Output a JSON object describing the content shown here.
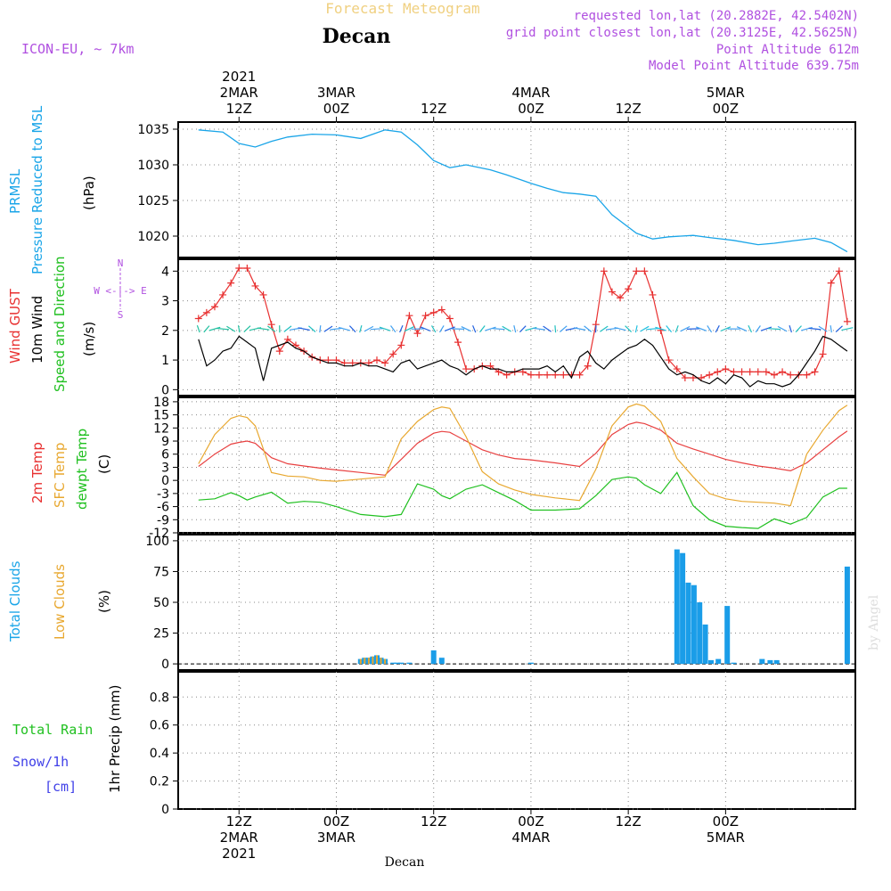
{
  "header": {
    "product": "Forecast Meteogram",
    "station": "Decan",
    "model": "ICON-EU, ~ 7km",
    "requested": "requested lon,lat (20.2882E, 42.5402N)",
    "gridpoint": "grid point closest lon,lat (20.3125E, 42.5625N)",
    "point_alt": "Point Altitude 612m",
    "model_alt": "Model Point Altitude 639.75m",
    "footer_station": "Decan",
    "credit": "by Angel"
  },
  "time_axis": {
    "ticks": [
      {
        "h": 12,
        "top": [
          "2021",
          "2MAR",
          "12Z"
        ],
        "bottom": [
          "12Z",
          "2MAR",
          "2021"
        ]
      },
      {
        "h": 24,
        "top": [
          "3MAR",
          "00Z"
        ],
        "bottom": [
          "00Z",
          "3MAR"
        ]
      },
      {
        "h": 36,
        "top": [
          "12Z"
        ],
        "bottom": [
          "12Z"
        ]
      },
      {
        "h": 48,
        "top": [
          "4MAR",
          "00Z"
        ],
        "bottom": [
          "00Z",
          "4MAR"
        ]
      },
      {
        "h": 60,
        "top": [
          "12Z"
        ],
        "bottom": [
          "12Z"
        ]
      },
      {
        "h": 72,
        "top": [
          "5MAR",
          "00Z"
        ],
        "bottom": [
          "00Z",
          "5MAR"
        ]
      }
    ]
  },
  "labels": {
    "p1": [
      "PRMSL",
      "Pressure Reduced to MSL",
      "(hPa)"
    ],
    "p2": [
      "Wind GUST",
      "10m Wind",
      "Speed and Direction",
      "(m/s)"
    ],
    "compass": [
      "N",
      "W <-|-> E",
      "S"
    ],
    "p3": [
      "2m Temp",
      "SFC Temp",
      "dewpt Temp",
      "(C)"
    ],
    "p4": [
      "Total Clouds",
      "Low Clouds",
      "(%)"
    ],
    "p5": [
      "Total  Rain",
      "Snow/1h",
      "[cm]",
      "1hr Precip (mm)"
    ]
  },
  "colors": {
    "pressure": "#1aa5e8",
    "gust": "#e83030",
    "wind": "#000000",
    "t2m": "#e84040",
    "sfc": "#e8a830",
    "dewpt": "#20c020",
    "clouds": "#1a9de8",
    "low_clouds": "#e8a830",
    "rain": "#20c020",
    "snow": "#4040e8",
    "meta": "#b050e0"
  },
  "chart_data": [
    {
      "type": "line",
      "title": "PRMSL Pressure Reduced to MSL",
      "ylabel": "(hPa)",
      "ylim": [
        1017,
        1036
      ],
      "yticks": [
        1020,
        1025,
        1030,
        1035
      ],
      "x_hours": [
        7,
        10,
        12,
        14,
        16,
        18,
        21,
        24,
        27,
        30,
        32,
        34,
        36,
        38,
        40,
        43,
        45,
        48,
        50,
        52,
        54,
        56,
        58,
        61,
        63,
        65,
        68,
        70,
        73,
        76,
        78,
        80,
        83,
        85,
        87
      ],
      "series": [
        {
          "name": "PRMSL",
          "values": [
            1034.9,
            1034.6,
            1033.0,
            1032.5,
            1033.3,
            1033.9,
            1034.3,
            1034.2,
            1033.7,
            1034.9,
            1034.6,
            1032.8,
            1030.6,
            1029.6,
            1030.0,
            1029.3,
            1028.6,
            1027.4,
            1026.7,
            1026.1,
            1025.9,
            1025.6,
            1023.0,
            1020.4,
            1019.6,
            1019.9,
            1020.1,
            1019.8,
            1019.4,
            1018.8,
            1019.0,
            1019.3,
            1019.7,
            1019.1,
            1017.8
          ]
        }
      ]
    },
    {
      "type": "line",
      "title": "Wind GUST / 10m Wind Speed and Direction",
      "ylabel": "(m/s)",
      "ylim": [
        -0.2,
        4.4
      ],
      "yticks": [
        0,
        1,
        2,
        3,
        4
      ],
      "x_hours": [
        7,
        8,
        9,
        10,
        11,
        12,
        13,
        14,
        15,
        16,
        17,
        18,
        19,
        20,
        21,
        22,
        23,
        24,
        25,
        26,
        27,
        28,
        29,
        30,
        31,
        32,
        33,
        34,
        35,
        36,
        37,
        38,
        39,
        40,
        41,
        42,
        43,
        44,
        45,
        46,
        47,
        48,
        49,
        50,
        51,
        52,
        53,
        54,
        55,
        56,
        57,
        58,
        59,
        60,
        61,
        62,
        63,
        64,
        65,
        66,
        67,
        68,
        69,
        70,
        71,
        72,
        73,
        74,
        75,
        76,
        77,
        78,
        79,
        80,
        81,
        82,
        83,
        84,
        85,
        86,
        87
      ],
      "series": [
        {
          "name": "Wind GUST",
          "values": [
            2.4,
            2.6,
            2.8,
            3.2,
            3.6,
            4.1,
            4.1,
            3.5,
            3.2,
            2.2,
            1.3,
            1.7,
            1.5,
            1.3,
            1.1,
            1.0,
            1.0,
            1.0,
            0.9,
            0.9,
            0.9,
            0.9,
            1.0,
            0.9,
            1.2,
            1.5,
            2.5,
            1.9,
            2.5,
            2.6,
            2.7,
            2.4,
            1.6,
            0.7,
            0.7,
            0.8,
            0.8,
            0.6,
            0.5,
            0.6,
            0.6,
            0.5,
            0.5,
            0.5,
            0.5,
            0.5,
            0.5,
            0.5,
            0.8,
            2.2,
            4.0,
            3.3,
            3.1,
            3.4,
            4.0,
            4.0,
            3.2,
            2.0,
            1.0,
            0.7,
            0.4,
            0.4,
            0.4,
            0.5,
            0.6,
            0.7,
            0.6,
            0.6,
            0.6,
            0.6,
            0.6,
            0.5,
            0.6,
            0.5,
            0.5,
            0.5,
            0.6,
            1.2,
            3.6,
            4.0,
            2.3
          ]
        },
        {
          "name": "10m Wind",
          "values": [
            1.7,
            0.8,
            1.0,
            1.3,
            1.4,
            1.8,
            1.6,
            1.4,
            0.3,
            1.4,
            1.5,
            1.6,
            1.4,
            1.3,
            1.1,
            1.0,
            0.9,
            0.9,
            0.8,
            0.8,
            0.9,
            0.8,
            0.8,
            0.7,
            0.6,
            0.9,
            1.0,
            0.7,
            0.8,
            0.9,
            1.0,
            0.8,
            0.7,
            0.5,
            0.7,
            0.8,
            0.7,
            0.7,
            0.6,
            0.6,
            0.7,
            0.7,
            0.7,
            0.8,
            0.6,
            0.8,
            0.4,
            1.1,
            1.3,
            0.9,
            0.7,
            1.0,
            1.2,
            1.4,
            1.5,
            1.7,
            1.5,
            1.1,
            0.7,
            0.5,
            0.6,
            0.5,
            0.3,
            0.2,
            0.4,
            0.2,
            0.5,
            0.4,
            0.1,
            0.3,
            0.2,
            0.2,
            0.1,
            0.2,
            0.5,
            0.9,
            1.3,
            1.8,
            1.7,
            1.5,
            1.3
          ]
        }
      ]
    },
    {
      "type": "line",
      "title": "2m Temp / SFC Temp / dewpt Temp",
      "ylabel": "(C)",
      "ylim": [
        -12,
        19
      ],
      "yticks": [
        -12,
        -9,
        -6,
        -3,
        0,
        3,
        6,
        9,
        12,
        15,
        18
      ],
      "x_hours": [
        7,
        9,
        11,
        12,
        13,
        14,
        16,
        18,
        20,
        22,
        24,
        27,
        30,
        32,
        34,
        36,
        37,
        38,
        40,
        42,
        44,
        46,
        48,
        51,
        54,
        56,
        58,
        60,
        61,
        62,
        64,
        66,
        68,
        70,
        72,
        74,
        76,
        78,
        80,
        82,
        84,
        86,
        87
      ],
      "series": [
        {
          "name": "2m Temp",
          "values": [
            3.2,
            6.0,
            8.3,
            8.7,
            9.0,
            8.5,
            5.2,
            3.8,
            3.3,
            2.8,
            2.4,
            1.8,
            1.2,
            4.8,
            8.5,
            10.8,
            11.2,
            11.0,
            9.0,
            7.0,
            5.8,
            5.0,
            4.7,
            4.0,
            3.2,
            6.2,
            10.5,
            12.8,
            13.3,
            13.0,
            11.5,
            8.5,
            7.2,
            6.0,
            4.8,
            4.0,
            3.3,
            2.8,
            2.2,
            4.0,
            7.0,
            10.0,
            11.3
          ]
        },
        {
          "name": "SFC Temp",
          "values": [
            3.8,
            10.5,
            14.2,
            14.8,
            14.4,
            12.5,
            1.8,
            1.0,
            0.8,
            0.0,
            -0.2,
            0.3,
            0.8,
            9.5,
            13.5,
            16.2,
            16.8,
            16.5,
            10.0,
            2.0,
            -0.8,
            -2.2,
            -3.2,
            -4.0,
            -4.6,
            2.5,
            12.5,
            16.8,
            17.5,
            17.0,
            13.5,
            5.0,
            0.8,
            -3.0,
            -4.2,
            -4.8,
            -5.0,
            -5.2,
            -5.8,
            6.0,
            11.5,
            16.0,
            17.2
          ]
        },
        {
          "name": "dewpt Temp",
          "values": [
            -4.5,
            -4.2,
            -2.8,
            -3.5,
            -4.5,
            -3.8,
            -2.7,
            -5.2,
            -4.8,
            -5.0,
            -6.0,
            -7.8,
            -8.3,
            -7.8,
            -0.8,
            -2.0,
            -3.5,
            -4.2,
            -2.0,
            -1.0,
            -2.8,
            -4.6,
            -6.8,
            -6.8,
            -6.5,
            -3.5,
            0.2,
            0.8,
            0.5,
            -1.0,
            -3.0,
            1.8,
            -5.8,
            -9.0,
            -10.5,
            -10.8,
            -11.0,
            -8.8,
            -10.0,
            -8.5,
            -3.8,
            -1.8,
            -1.8
          ]
        }
      ]
    },
    {
      "type": "bar",
      "title": "Total Clouds / Low Clouds",
      "ylabel": "(%)",
      "ylim": [
        -5,
        105
      ],
      "yticks": [
        0,
        25,
        50,
        75,
        100
      ],
      "x_hours": [
        27,
        27.5,
        28,
        28.5,
        29,
        29.5,
        30,
        31,
        31.5,
        32,
        33,
        36,
        37,
        48,
        66,
        66.7,
        67.4,
        68.1,
        68.8,
        69.5,
        70.2,
        71.1,
        72.2,
        73,
        76.5,
        77.5,
        78.3,
        87
      ],
      "series": [
        {
          "name": "Total Clouds",
          "values": [
            4,
            5,
            5,
            6,
            7,
            5,
            4,
            1,
            1,
            1,
            1,
            11,
            5,
            1,
            93,
            90,
            66,
            64,
            50,
            32,
            3,
            4,
            47,
            1,
            4,
            3,
            3,
            79
          ]
        },
        {
          "name": "Low Clouds",
          "values": [
            4,
            5,
            5,
            6,
            7,
            5,
            4,
            0,
            0,
            0,
            0,
            0,
            0,
            0,
            0,
            0,
            0,
            0,
            0,
            0,
            0,
            0,
            0,
            0,
            0,
            0,
            0,
            0
          ]
        }
      ]
    },
    {
      "type": "bar",
      "title": "Total Rain / Snow 1h",
      "ylabel": "1hr Precip (mm)",
      "ylim": [
        0,
        0.98
      ],
      "yticks": [
        0,
        0.2,
        0.4,
        0.6,
        0.8
      ],
      "x_hours": [],
      "series": [
        {
          "name": "Total Rain",
          "values": []
        },
        {
          "name": "Snow/1h",
          "values": []
        }
      ]
    }
  ]
}
